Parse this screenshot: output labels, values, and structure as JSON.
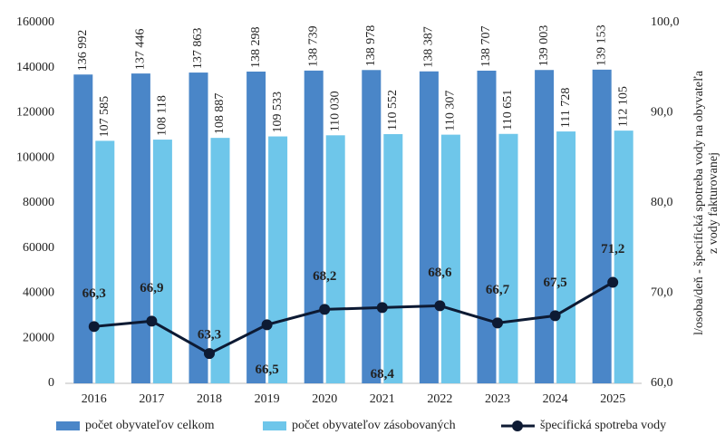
{
  "chart_data": {
    "type": "bar",
    "categories": [
      "2016",
      "2017",
      "2018",
      "2019",
      "2020",
      "2021",
      "2022",
      "2023",
      "2024",
      "2025"
    ],
    "series": [
      {
        "name": "počet obyvateľov celkom",
        "type": "bar",
        "color": "#4a86c8",
        "values": [
          136992,
          137446,
          137863,
          138298,
          138739,
          138978,
          138387,
          138707,
          139003,
          139153
        ],
        "value_labels": [
          "136 992",
          "137 446",
          "137 863",
          "138 298",
          "138 739",
          "138 978",
          "138 387",
          "138 707",
          "139 003",
          "139 153"
        ]
      },
      {
        "name": "počet obyvateľov zásobovaných",
        "type": "bar",
        "color": "#6ec6ea",
        "values": [
          107585,
          108118,
          108887,
          109533,
          110030,
          110552,
          110307,
          110651,
          111728,
          112105
        ],
        "value_labels": [
          "107 585",
          "108 118",
          "108 887",
          "109 533",
          "110 030",
          "110 552",
          "110 307",
          "110 651",
          "111 728",
          "112 105"
        ]
      },
      {
        "name": "špecifická spotreba vody",
        "type": "line",
        "axis": "y2",
        "color": "#0d1a33",
        "values": [
          66.3,
          66.9,
          63.3,
          66.5,
          68.2,
          68.4,
          68.6,
          66.7,
          67.5,
          71.2
        ],
        "value_labels": [
          "66,3",
          "66,9",
          "63,3",
          "66,5",
          "68,2",
          "68,4",
          "68,6",
          "66,7",
          "67,5",
          "71,2"
        ]
      }
    ],
    "ylim": [
      0,
      160000
    ],
    "yticks": [
      0,
      20000,
      40000,
      60000,
      80000,
      100000,
      120000,
      140000,
      160000
    ],
    "y2lim": [
      60,
      100
    ],
    "y2ticks": [
      {
        "value": 60,
        "label": "60,0"
      },
      {
        "value": 70,
        "label": "70,0"
      },
      {
        "value": 80,
        "label": "80,0"
      },
      {
        "value": 90,
        "label": "90,0"
      },
      {
        "value": 100,
        "label": "100,0"
      }
    ],
    "y2label": [
      "l/osoba/deň - špecifická spotreba vody na obyvateľa",
      "z vody fakturovanej"
    ],
    "legend": "bottom"
  }
}
